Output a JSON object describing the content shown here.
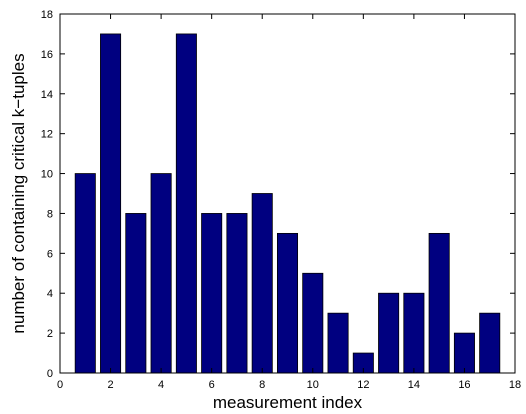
{
  "chart_data": {
    "type": "bar",
    "x": [
      1,
      2,
      3,
      4,
      5,
      6,
      7,
      8,
      9,
      10,
      11,
      12,
      13,
      14,
      15,
      16,
      17
    ],
    "values": [
      10,
      17,
      8,
      10,
      17,
      8,
      8,
      9,
      7,
      5,
      3,
      1,
      4,
      4,
      7,
      2,
      3
    ],
    "title": "",
    "xlabel": "measurement index",
    "ylabel": "number of containing critical k−tuples",
    "xlim": [
      0,
      18
    ],
    "ylim": [
      0,
      18
    ],
    "xticks": [
      "0",
      "2",
      "4",
      "6",
      "8",
      "10",
      "12",
      "14",
      "16",
      "18"
    ],
    "yticks": [
      "0",
      "2",
      "4",
      "6",
      "8",
      "10",
      "12",
      "14",
      "16",
      "18"
    ],
    "grid": false,
    "legend": "none",
    "bar_color": "#000080",
    "bar_edge_color": "#000000"
  }
}
